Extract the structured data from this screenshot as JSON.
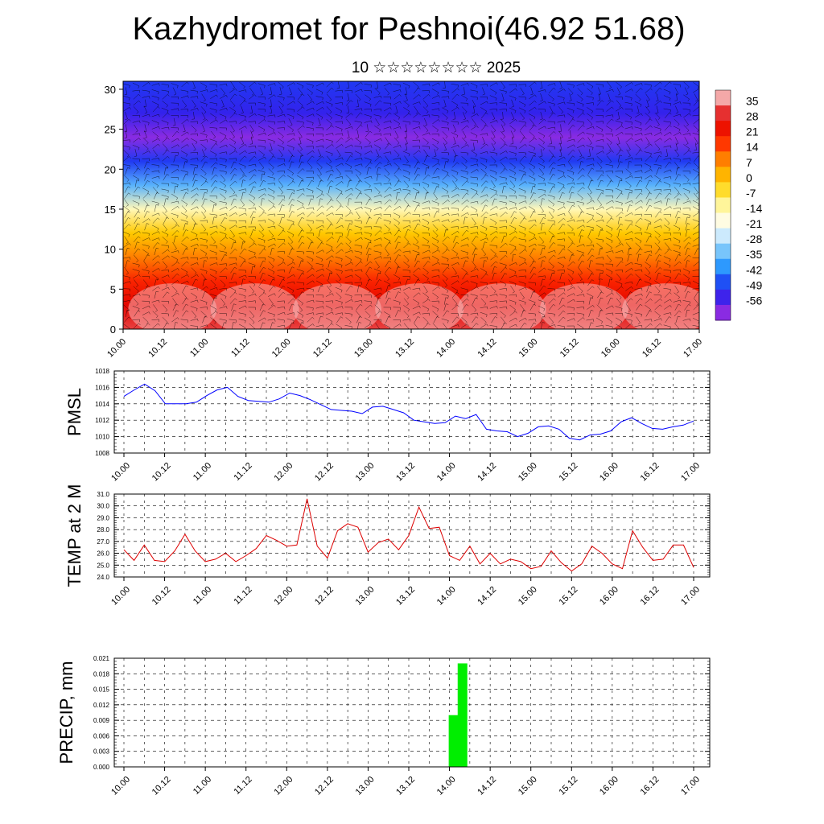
{
  "title": "Kazhydromet for Peshnoi(46.92 51.68)",
  "subtitle": "10 ☆☆☆☆☆☆☆☆ 2025",
  "x_tick_labels": [
    "10.00",
    "10.12",
    "11.00",
    "11.12",
    "12.00",
    "12.12",
    "13.00",
    "13.12",
    "14.00",
    "14.12",
    "15.00",
    "15.12",
    "16.00",
    "16.12",
    "17.00"
  ],
  "colorbar_labels": [
    "35",
    "28",
    "21",
    "14",
    "7",
    "0",
    "-7",
    "-14",
    "-21",
    "-28",
    "-35",
    "-42",
    "-49",
    "-56"
  ],
  "chart_data": [
    {
      "type": "heatmap",
      "name": "vertical temperature/wind section",
      "ylim": [
        0,
        31
      ],
      "y_ticks": [
        0,
        5,
        10,
        15,
        20,
        25,
        30
      ],
      "y_tick_labels": [
        "0",
        "5",
        "10",
        "15",
        "20",
        "25",
        "30"
      ],
      "color_range": [
        -60,
        38
      ],
      "profile_levels": [
        0,
        3,
        6,
        9,
        12,
        15,
        18,
        21,
        24,
        27,
        31
      ],
      "profile_temps": [
        32,
        27,
        20,
        10,
        0,
        -14,
        -35,
        -48,
        -60,
        -52,
        -48
      ],
      "colors": [
        "#8a2be2",
        "#2020ee",
        "#1e90ff",
        "#87cefa",
        "#ffffff",
        "#fff59a",
        "#ffd200",
        "#ff8c00",
        "#ff2a00",
        "#e00000",
        "#f4a8a8"
      ]
    },
    {
      "type": "line",
      "name": "PMSL",
      "ylabel": "PMSL",
      "ylim": [
        1008,
        1018
      ],
      "y_ticks": [
        1008,
        1010,
        1012,
        1014,
        1016,
        1018
      ],
      "y_tick_labels": [
        "1008",
        "1010",
        "1012",
        "1014",
        "1016",
        "1018"
      ],
      "color": "#0000ff",
      "values": [
        1014.9,
        1015.7,
        1016.4,
        1015.6,
        1014.0,
        1014.0,
        1014.0,
        1014.2,
        1015.0,
        1015.7,
        1016.0,
        1014.9,
        1014.4,
        1014.3,
        1014.2,
        1014.6,
        1015.3,
        1015.0,
        1014.5,
        1013.9,
        1013.3,
        1013.2,
        1013.1,
        1012.8,
        1013.6,
        1013.7,
        1013.3,
        1012.9,
        1012.0,
        1011.8,
        1011.6,
        1011.7,
        1012.5,
        1012.2,
        1012.7,
        1010.9,
        1010.7,
        1010.6,
        1010.0,
        1010.4,
        1011.2,
        1011.3,
        1010.9,
        1009.8,
        1009.6,
        1010.2,
        1010.3,
        1010.7,
        1011.8,
        1012.3,
        1011.6,
        1011.0,
        1010.9,
        1011.2,
        1011.4,
        1011.9
      ]
    },
    {
      "type": "line",
      "name": "TEMP at 2 M",
      "ylabel": "TEMP at 2 M",
      "ylim": [
        24,
        31
      ],
      "y_ticks": [
        24,
        25,
        26,
        27,
        28,
        29,
        30,
        31
      ],
      "y_tick_labels": [
        "24.0",
        "25.0",
        "26.0",
        "27.0",
        "28.0",
        "29.0",
        "30.0",
        "31.0"
      ],
      "color": "#dd0000",
      "values": [
        26.3,
        25.4,
        26.7,
        25.4,
        25.3,
        26.2,
        27.6,
        26.2,
        25.3,
        25.5,
        26.0,
        25.3,
        25.8,
        26.4,
        27.5,
        27.1,
        26.6,
        26.7,
        30.6,
        26.6,
        25.6,
        27.9,
        28.5,
        28.2,
        26.1,
        26.9,
        27.2,
        26.3,
        27.5,
        29.9,
        28.1,
        28.2,
        25.8,
        25.4,
        26.6,
        25.1,
        26.0,
        25.1,
        25.5,
        25.3,
        24.7,
        24.9,
        26.2,
        25.2,
        24.5,
        25.1,
        26.6,
        26.0,
        25.1,
        24.7,
        27.9,
        26.5,
        25.4,
        25.5,
        26.7,
        26.7,
        24.8
      ]
    },
    {
      "type": "bar",
      "name": "PRECIP, mm",
      "ylabel": "PRECIP, mm",
      "ylim": [
        0,
        0.021
      ],
      "y_ticks": [
        0,
        0.003,
        0.006,
        0.009,
        0.012,
        0.015,
        0.018,
        0.021
      ],
      "y_tick_labels": [
        "0.000",
        "0.003",
        "0.006",
        "0.009",
        "0.012",
        "0.015",
        "0.018",
        "0.021"
      ],
      "color": "#00ee00",
      "bars": [
        {
          "t": 4.05,
          "value": 0.01
        },
        {
          "t": 4.16,
          "value": 0.02
        }
      ]
    }
  ]
}
